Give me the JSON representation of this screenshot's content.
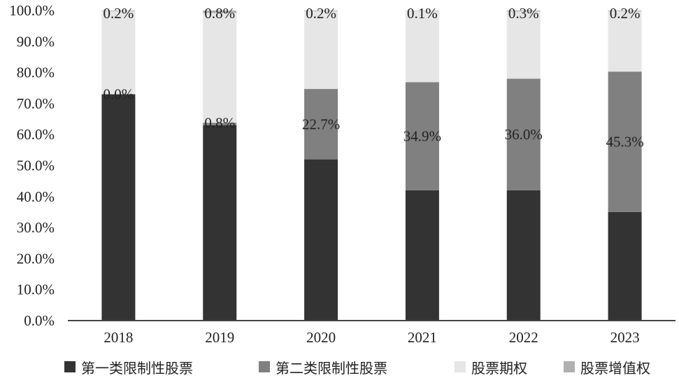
{
  "chart_data": {
    "type": "bar",
    "stacked": true,
    "categories": [
      "2018",
      "2019",
      "2020",
      "2021",
      "2022",
      "2023"
    ],
    "ylim": [
      0,
      100
    ],
    "yticks": [
      "0.0%",
      "10.0%",
      "20.0%",
      "30.0%",
      "40.0%",
      "50.0%",
      "60.0%",
      "70.0%",
      "80.0%",
      "90.0%",
      "100.0%"
    ],
    "grid": false,
    "legend_position": "bottom",
    "series": [
      {
        "name": "第一类限制性股票",
        "color": "#333333",
        "values": [
          73,
          63,
          52,
          42,
          42,
          35
        ],
        "labels": [
          "",
          "",
          "",
          "",
          "",
          ""
        ]
      },
      {
        "name": "第二类限制性股票",
        "color": "#808080",
        "values": [
          0.0,
          0.8,
          22.7,
          34.9,
          36.0,
          45.3
        ],
        "labels": [
          "0.0%",
          "0.8%",
          "22.7%",
          "34.9%",
          "36.0%",
          "45.3%"
        ]
      },
      {
        "name": "股票期权",
        "color": "#e6e6e6",
        "values": [
          26.8,
          35.4,
          25.1,
          23.0,
          21.7,
          19.5
        ],
        "labels": [
          "",
          "",
          "",
          "",
          "",
          ""
        ]
      },
      {
        "name": "股票增值权",
        "color": "#b0b0b0",
        "values": [
          0.2,
          0.8,
          0.2,
          0.1,
          0.3,
          0.2
        ],
        "labels": [
          "0.2%",
          "0.8%",
          "0.2%",
          "0.1%",
          "0.3%",
          "0.2%"
        ]
      }
    ]
  }
}
